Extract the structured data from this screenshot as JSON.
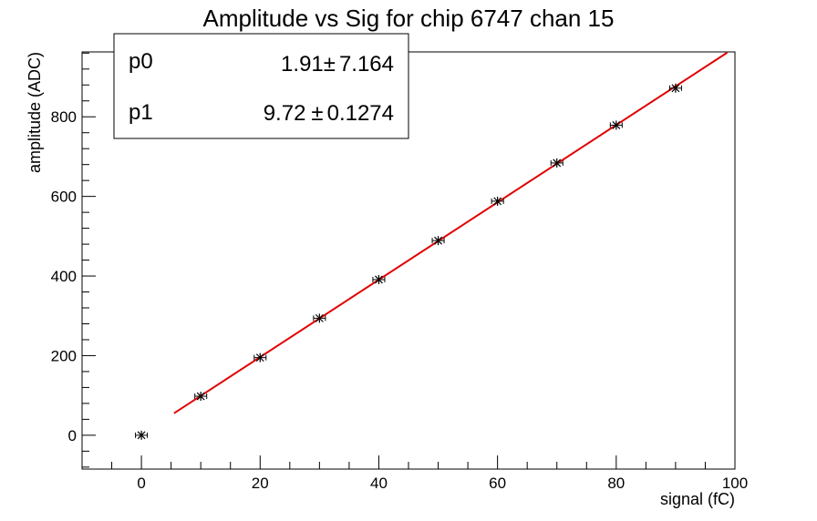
{
  "chart_data": {
    "type": "scatter",
    "title": "Amplitude vs Sig for chip 6747 chan 15",
    "xlabel": "signal (fC)",
    "ylabel": "amplitude (ADC)",
    "xlim": [
      -10,
      100
    ],
    "ylim": [
      -85,
      963
    ],
    "x_ticks": [
      0,
      20,
      40,
      60,
      80,
      100
    ],
    "y_ticks": [
      0,
      200,
      400,
      600,
      800
    ],
    "grid": false,
    "points": [
      {
        "x": 0,
        "y": 0
      },
      {
        "x": 10,
        "y": 98
      },
      {
        "x": 20,
        "y": 195
      },
      {
        "x": 30,
        "y": 294
      },
      {
        "x": 40,
        "y": 391
      },
      {
        "x": 50,
        "y": 489
      },
      {
        "x": 60,
        "y": 588
      },
      {
        "x": 70,
        "y": 684
      },
      {
        "x": 80,
        "y": 779
      },
      {
        "x": 90,
        "y": 872
      }
    ],
    "x_error": 1,
    "fit": {
      "type": "linear",
      "color": "#e00000",
      "x_range": [
        5.5,
        98.7
      ],
      "params": [
        {
          "name": "p0",
          "value": "1.91",
          "pm": "±",
          "error": "7.164",
          "num": 1.91
        },
        {
          "name": "p1",
          "value": "9.72",
          "pm": "±",
          "error": "0.1274",
          "num": 9.72
        }
      ]
    },
    "marker_color": "#000000"
  }
}
